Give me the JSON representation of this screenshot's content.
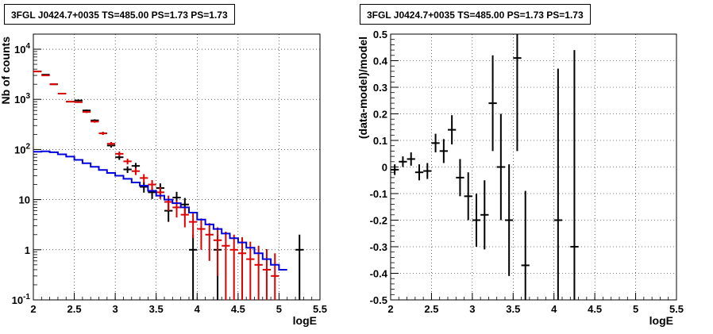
{
  "chart_data": [
    {
      "type": "line",
      "title": "3FGL J0424.7+0035 TS=485.00 PS=1.73 PS=1.73",
      "xlabel": "logE",
      "ylabel": "Nb of counts",
      "xlim": [
        2,
        5.5
      ],
      "ylim": [
        0.1,
        20000
      ],
      "yscale": "log",
      "grid": true,
      "x_ticks": [
        "2",
        "2.5",
        "3",
        "3.5",
        "4",
        "4.5",
        "5",
        "5.5"
      ],
      "y_ticks": [
        {
          "value": 0.1,
          "label": "10^-1"
        },
        {
          "value": 1,
          "label": "1"
        },
        {
          "value": 10,
          "label": "10"
        },
        {
          "value": 100,
          "label": "10^2"
        },
        {
          "value": 1000,
          "label": "10^3"
        },
        {
          "value": 10000,
          "label": "10^4"
        }
      ],
      "series": [
        {
          "color": "#000000",
          "style": "errorbar",
          "x": [
            2.05,
            2.15,
            2.25,
            2.35,
            2.45,
            2.55,
            2.65,
            2.75,
            2.85,
            2.95,
            3.05,
            3.15,
            3.25,
            3.35,
            3.45,
            3.55,
            3.65,
            3.75,
            3.85,
            3.95,
            4.05,
            4.15,
            4.25,
            4.35,
            4.45,
            4.55,
            4.65,
            4.75,
            4.85,
            4.95,
            5.05,
            5.15,
            5.25,
            5.35
          ],
          "y": [
            3600,
            3100,
            2000,
            1300,
            900,
            950,
            600,
            380,
            210,
            120,
            70,
            40,
            47,
            18,
            14,
            17,
            6,
            11,
            8,
            1,
            0,
            0,
            1,
            0,
            0,
            0,
            0,
            0,
            0,
            0,
            0,
            0,
            1,
            0
          ],
          "yerr": [
            60,
            55,
            45,
            36,
            30,
            31,
            25,
            20,
            15,
            11,
            8,
            6,
            7,
            4.2,
            3.7,
            4.1,
            2.4,
            3.3,
            2.8,
            1,
            0,
            0,
            1,
            0,
            0,
            0,
            0,
            0,
            0,
            0,
            0,
            0,
            1,
            0
          ]
        },
        {
          "color": "#dd0000",
          "style": "errorbar",
          "x": [
            2.05,
            2.15,
            2.25,
            2.35,
            2.45,
            2.55,
            2.65,
            2.75,
            2.85,
            2.95,
            3.05,
            3.15,
            3.25,
            3.35,
            3.45,
            3.55,
            3.65,
            3.75,
            3.85,
            3.95,
            4.05,
            4.15,
            4.25,
            4.35,
            4.45,
            4.55,
            4.65,
            4.75,
            4.85,
            4.95,
            5.05,
            5.15,
            5.25,
            5.35
          ],
          "y": [
            3600,
            3000,
            2000,
            1300,
            900,
            880,
            560,
            360,
            210,
            130,
            82,
            58,
            37,
            27,
            20,
            14,
            9,
            7,
            5,
            3.6,
            2.6,
            2.0,
            1.55,
            1.2,
            1.0,
            0.85,
            0.65,
            0.5,
            0.4,
            0.3,
            0,
            0,
            0,
            0
          ],
          "yerr": [
            60,
            55,
            45,
            36,
            30,
            30,
            24,
            19,
            14,
            11,
            9,
            7.6,
            6.1,
            5.2,
            4.5,
            3.7,
            3,
            2.6,
            2.2,
            1.9,
            1.6,
            1.4,
            1.25,
            1.1,
            1.0,
            0.92,
            0.8,
            0.7,
            0.63,
            0.55,
            0,
            0,
            0,
            0
          ]
        },
        {
          "color": "#0000dd",
          "style": "step",
          "edges": [
            2.0,
            2.1,
            2.2,
            2.3,
            2.4,
            2.5,
            2.6,
            2.7,
            2.8,
            2.9,
            3.0,
            3.1,
            3.2,
            3.3,
            3.4,
            3.5,
            3.6,
            3.7,
            3.8,
            3.9,
            4.0,
            4.1,
            4.2,
            4.3,
            4.4,
            4.5,
            4.6,
            4.7,
            4.8,
            4.9,
            5.0,
            5.1
          ],
          "values": [
            90,
            92,
            88,
            80,
            72,
            62,
            53,
            45,
            39,
            34,
            30,
            26,
            22,
            19,
            15,
            12,
            10,
            8.5,
            7,
            5.5,
            4,
            3.2,
            2.6,
            2.1,
            1.7,
            1.4,
            1.1,
            0.85,
            0.65,
            0.5,
            0.4
          ]
        }
      ]
    },
    {
      "type": "scatter",
      "title": "3FGL J0424.7+0035 TS=485.00 PS=1.73 PS=1.73",
      "xlabel": "logE",
      "ylabel": "(data-model)/model",
      "xlim": [
        2,
        5.5
      ],
      "ylim": [
        -0.5,
        0.5
      ],
      "grid": true,
      "x_ticks": [
        "2",
        "2.5",
        "3",
        "3.5",
        "4",
        "4.5",
        "5",
        "5.5"
      ],
      "y_ticks": [
        "-0.5",
        "-0.4",
        "-0.3",
        "-0.2",
        "-0.1",
        "0",
        "0.1",
        "0.2",
        "0.3",
        "0.4",
        "0.5"
      ],
      "series": [
        {
          "color": "#000000",
          "style": "errorbar",
          "x": [
            2.05,
            2.15,
            2.25,
            2.35,
            2.45,
            2.55,
            2.65,
            2.75,
            2.85,
            2.95,
            3.05,
            3.15,
            3.25,
            3.35,
            3.45,
            3.55,
            3.65,
            4.05,
            4.25
          ],
          "y": [
            -0.01,
            0.02,
            0.03,
            -0.02,
            -0.015,
            0.09,
            0.06,
            0.14,
            -0.04,
            -0.11,
            -0.2,
            -0.18,
            0.24,
            0.0,
            -0.2,
            0.41,
            -0.37,
            -0.2,
            -0.3
          ],
          "yerr": [
            0.02,
            0.02,
            0.025,
            0.03,
            0.03,
            0.035,
            0.045,
            0.055,
            0.07,
            0.09,
            0.1,
            0.13,
            0.18,
            0.2,
            0.21,
            0.35,
            0.28,
            0.57,
            0.74
          ]
        }
      ]
    }
  ]
}
